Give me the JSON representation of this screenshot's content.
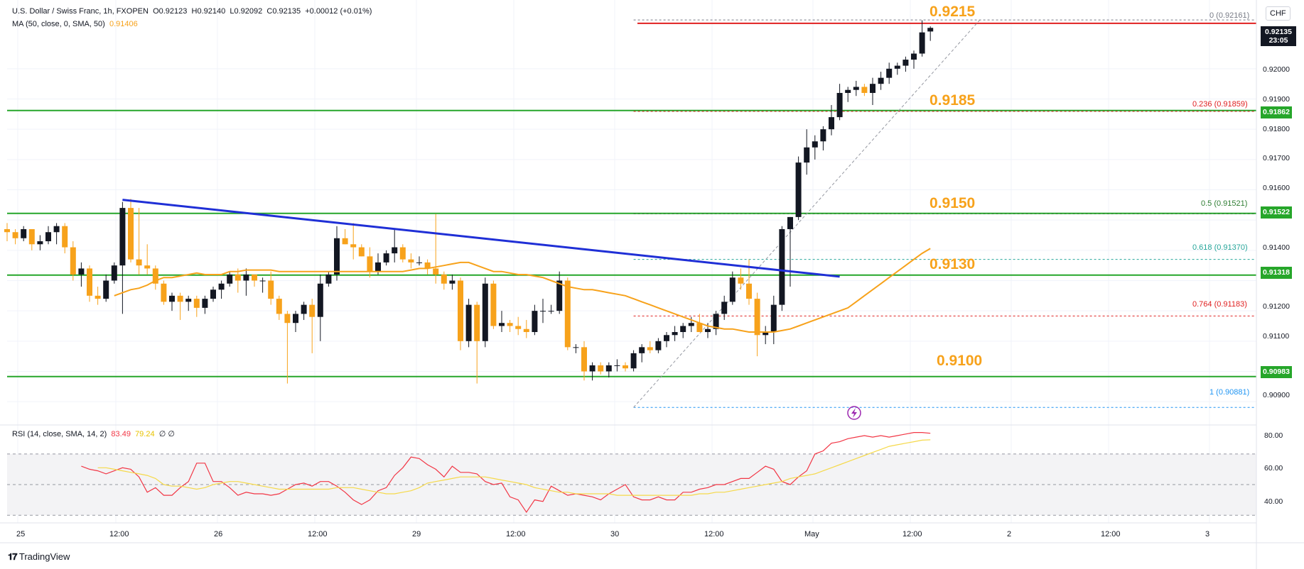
{
  "legend": {
    "symbol": "U.S. Dollar / Swiss Franc, 1h, FXOPEN",
    "o": "O0.92123",
    "h": "H0.92140",
    "l": "L0.92092",
    "c": "C0.92135",
    "change": "+0.00012 (+0.01%)",
    "ma_label": "MA (50, close, 0, SMA, 50)",
    "ma_value": "0.91406",
    "rsi_label": "RSI (14, close, SMA, 14, 2)",
    "rsi_value": "83.49",
    "rsi_avg_value": "79.24",
    "rsi_extra": "∅  ∅"
  },
  "currency": "CHF",
  "last_price": {
    "price": "0.92135",
    "countdown": "23:05"
  },
  "price_badges": [
    "0.91862",
    "0.91522",
    "0.91318",
    "0.90983"
  ],
  "level_labels": [
    "0.9215",
    "0.9185",
    "0.9150",
    "0.9130",
    "0.9100"
  ],
  "fib_labels": [
    "0 (0.92161)",
    "0.236 (0.91859)",
    "0.5 (0.91521)",
    "0.618 (0.91370)",
    "0.764 (0.91183)",
    "1 (0.90881)"
  ],
  "price_ticks": [
    "0.92000",
    "0.91900",
    "0.91800",
    "0.91700",
    "0.91600",
    "0.91400",
    "0.91300",
    "0.91200",
    "0.91100",
    "0.90900"
  ],
  "rsi_ticks": [
    "80.00",
    "60.00",
    "40.00"
  ],
  "time_ticks": [
    "25",
    "12:00",
    "26",
    "12:00",
    "29",
    "12:00",
    "30",
    "12:00",
    "May",
    "12:00",
    "2",
    "12:00",
    "3"
  ],
  "brand": "TradingView",
  "colors": {
    "up": "#131722",
    "down": "#f7a21b",
    "support": "#26a62a",
    "resistance": "#e02020",
    "trendline": "#1f2fd6",
    "ma": "#f7a21b",
    "rsi": "#f23645",
    "rsi_avg": "#f5d94a"
  },
  "chart_data": {
    "type": "candlestick",
    "timeframe": "1h",
    "ylim": [
      0.9083,
      0.9222
    ],
    "rsi_ylim": [
      25,
      88
    ],
    "candles": [
      [
        0.9147,
        0.9149,
        0.9143,
        0.9146
      ],
      [
        0.9146,
        0.9147,
        0.9142,
        0.9144
      ],
      [
        0.9144,
        0.9148,
        0.9143,
        0.9147
      ],
      [
        0.9147,
        0.9147,
        0.914,
        0.9142
      ],
      [
        0.9142,
        0.9145,
        0.914,
        0.9143
      ],
      [
        0.9143,
        0.9148,
        0.9142,
        0.9146
      ],
      [
        0.9146,
        0.9149,
        0.9142,
        0.9148
      ],
      [
        0.9148,
        0.9149,
        0.9139,
        0.9141
      ],
      [
        0.9141,
        0.9143,
        0.913,
        0.9132
      ],
      [
        0.9132,
        0.9136,
        0.9128,
        0.9134
      ],
      [
        0.9134,
        0.9135,
        0.9123,
        0.9125
      ],
      [
        0.9125,
        0.9128,
        0.9122,
        0.9124
      ],
      [
        0.9124,
        0.9132,
        0.9123,
        0.913
      ],
      [
        0.913,
        0.9136,
        0.9129,
        0.9135
      ],
      [
        0.9135,
        0.9156,
        0.9119,
        0.9154
      ],
      [
        0.9154,
        0.9157,
        0.9136,
        0.9137
      ],
      [
        0.9137,
        0.9154,
        0.9132,
        0.9135
      ],
      [
        0.9135,
        0.9142,
        0.9132,
        0.9134
      ],
      [
        0.9134,
        0.9135,
        0.9127,
        0.9129
      ],
      [
        0.9129,
        0.913,
        0.9122,
        0.9123
      ],
      [
        0.9123,
        0.9126,
        0.912,
        0.9125
      ],
      [
        0.9125,
        0.9126,
        0.9117,
        0.9123
      ],
      [
        0.9123,
        0.9125,
        0.912,
        0.9124
      ],
      [
        0.9124,
        0.9125,
        0.9118,
        0.9121
      ],
      [
        0.9121,
        0.9125,
        0.9119,
        0.9124
      ],
      [
        0.9124,
        0.9128,
        0.9123,
        0.9127
      ],
      [
        0.9127,
        0.913,
        0.9124,
        0.9129
      ],
      [
        0.9129,
        0.9133,
        0.9128,
        0.9132
      ],
      [
        0.9132,
        0.9134,
        0.9126,
        0.913
      ],
      [
        0.913,
        0.9134,
        0.9125,
        0.9132
      ],
      [
        0.9132,
        0.9132,
        0.9128,
        0.913
      ],
      [
        0.913,
        0.9131,
        0.9126,
        0.913
      ],
      [
        0.913,
        0.9133,
        0.9122,
        0.9124
      ],
      [
        0.9124,
        0.9125,
        0.9117,
        0.9119
      ],
      [
        0.9119,
        0.912,
        0.9096,
        0.9116
      ],
      [
        0.9116,
        0.912,
        0.9113,
        0.9119
      ],
      [
        0.9119,
        0.9123,
        0.9117,
        0.9122
      ],
      [
        0.9122,
        0.9124,
        0.9106,
        0.9118
      ],
      [
        0.9118,
        0.9132,
        0.911,
        0.9129
      ],
      [
        0.9129,
        0.9133,
        0.9128,
        0.9132
      ],
      [
        0.9132,
        0.9148,
        0.913,
        0.9144
      ],
      [
        0.9144,
        0.9147,
        0.9142,
        0.9142
      ],
      [
        0.9142,
        0.9149,
        0.9137,
        0.9141
      ],
      [
        0.9141,
        0.9142,
        0.9138,
        0.9138
      ],
      [
        0.9138,
        0.9141,
        0.9131,
        0.9133
      ],
      [
        0.9133,
        0.9139,
        0.9132,
        0.9136
      ],
      [
        0.9136,
        0.914,
        0.9135,
        0.9139
      ],
      [
        0.9139,
        0.9147,
        0.9136,
        0.9141
      ],
      [
        0.9141,
        0.9142,
        0.9136,
        0.9137
      ],
      [
        0.9137,
        0.9139,
        0.9134,
        0.9136
      ],
      [
        0.9136,
        0.9138,
        0.9135,
        0.9136
      ],
      [
        0.9136,
        0.9137,
        0.9132,
        0.9134
      ],
      [
        0.9134,
        0.9152,
        0.9129,
        0.9132
      ],
      [
        0.9132,
        0.9133,
        0.9127,
        0.9129
      ],
      [
        0.9129,
        0.9132,
        0.9127,
        0.913
      ],
      [
        0.913,
        0.9131,
        0.9107,
        0.911
      ],
      [
        0.911,
        0.9124,
        0.9108,
        0.9122
      ],
      [
        0.9122,
        0.9123,
        0.9096,
        0.911
      ],
      [
        0.911,
        0.9131,
        0.9108,
        0.9129
      ],
      [
        0.9129,
        0.913,
        0.9114,
        0.9115
      ],
      [
        0.9115,
        0.912,
        0.9113,
        0.9116
      ],
      [
        0.9116,
        0.9117,
        0.9113,
        0.9115
      ],
      [
        0.9115,
        0.9118,
        0.9112,
        0.9114
      ],
      [
        0.9114,
        0.9117,
        0.9111,
        0.9113
      ],
      [
        0.9113,
        0.9122,
        0.9112,
        0.912
      ],
      [
        0.912,
        0.9124,
        0.9116,
        0.912
      ],
      [
        0.912,
        0.9122,
        0.9119,
        0.912
      ],
      [
        0.912,
        0.9133,
        0.9119,
        0.913
      ],
      [
        0.913,
        0.9131,
        0.9107,
        0.9108
      ],
      [
        0.9108,
        0.9109,
        0.9106,
        0.9108
      ],
      [
        0.9108,
        0.911,
        0.9097,
        0.91
      ],
      [
        0.91,
        0.9103,
        0.9097,
        0.9102
      ],
      [
        0.9102,
        0.9103,
        0.9099,
        0.91
      ],
      [
        0.91,
        0.9103,
        0.9098,
        0.9102
      ],
      [
        0.9102,
        0.9104,
        0.91,
        0.9102
      ],
      [
        0.9102,
        0.9103,
        0.91,
        0.9101
      ],
      [
        0.9101,
        0.9107,
        0.91,
        0.9106
      ],
      [
        0.9106,
        0.9109,
        0.9103,
        0.9108
      ],
      [
        0.9108,
        0.911,
        0.9106,
        0.9107
      ],
      [
        0.9107,
        0.9111,
        0.9106,
        0.911
      ],
      [
        0.911,
        0.9113,
        0.9108,
        0.9112
      ],
      [
        0.9112,
        0.9115,
        0.911,
        0.9113
      ],
      [
        0.9113,
        0.9116,
        0.9111,
        0.9115
      ],
      [
        0.9115,
        0.9118,
        0.9113,
        0.9116
      ],
      [
        0.9116,
        0.9119,
        0.9113,
        0.9113
      ],
      [
        0.9113,
        0.9116,
        0.9111,
        0.9114
      ],
      [
        0.9114,
        0.912,
        0.9112,
        0.9119
      ],
      [
        0.9119,
        0.9125,
        0.9117,
        0.9123
      ],
      [
        0.9123,
        0.9133,
        0.9122,
        0.9131
      ],
      [
        0.9131,
        0.9134,
        0.9127,
        0.9129
      ],
      [
        0.9129,
        0.9137,
        0.9122,
        0.9124
      ],
      [
        0.9124,
        0.9126,
        0.9105,
        0.9112
      ],
      [
        0.9112,
        0.9115,
        0.9109,
        0.9113
      ],
      [
        0.9113,
        0.9125,
        0.9109,
        0.9122
      ],
      [
        0.9122,
        0.9148,
        0.912,
        0.9147
      ],
      [
        0.9147,
        0.9151,
        0.9128,
        0.9151
      ],
      [
        0.9151,
        0.9171,
        0.915,
        0.9169
      ],
      [
        0.9169,
        0.918,
        0.9165,
        0.9174
      ],
      [
        0.9174,
        0.9178,
        0.917,
        0.9176
      ],
      [
        0.9176,
        0.9181,
        0.9173,
        0.918
      ],
      [
        0.918,
        0.9188,
        0.9178,
        0.9184
      ],
      [
        0.9184,
        0.9195,
        0.9183,
        0.9192
      ],
      [
        0.9192,
        0.9194,
        0.9189,
        0.9193
      ],
      [
        0.9193,
        0.9196,
        0.9191,
        0.9194
      ],
      [
        0.9194,
        0.9195,
        0.9191,
        0.9192
      ],
      [
        0.9192,
        0.9197,
        0.9188,
        0.9195
      ],
      [
        0.9195,
        0.9199,
        0.9193,
        0.9197
      ],
      [
        0.9197,
        0.9202,
        0.9195,
        0.92
      ],
      [
        0.92,
        0.9202,
        0.9198,
        0.9201
      ],
      [
        0.9201,
        0.9204,
        0.9199,
        0.9203
      ],
      [
        0.9203,
        0.9206,
        0.92,
        0.9205
      ],
      [
        0.9205,
        0.9216,
        0.9204,
        0.9212
      ],
      [
        0.92123,
        0.9214,
        0.92092,
        0.92135
      ]
    ],
    "ma": [
      0.9125,
      0.9126,
      0.9127,
      0.91275,
      0.91285,
      0.913,
      0.9131,
      0.9131,
      0.91315,
      0.9132,
      0.91325,
      0.9132,
      0.9132,
      0.9132,
      0.9133,
      0.9133,
      0.91335,
      0.91335,
      0.91335,
      0.91335,
      0.9133,
      0.9133,
      0.9133,
      0.9133,
      0.9133,
      0.9133,
      0.9133,
      0.9133,
      0.9133,
      0.9133,
      0.9133,
      0.9133,
      0.9133,
      0.9133,
      0.9133,
      0.9133,
      0.91335,
      0.9134,
      0.9134,
      0.91345,
      0.9135,
      0.91355,
      0.9136,
      0.9136,
      0.9135,
      0.9134,
      0.9133,
      0.9133,
      0.91325,
      0.9132,
      0.9132,
      0.91315,
      0.9131,
      0.913,
      0.9129,
      0.9128,
      0.91275,
      0.9127,
      0.9127,
      0.91265,
      0.9126,
      0.91255,
      0.9125,
      0.9124,
      0.9123,
      0.9122,
      0.9121,
      0.912,
      0.9119,
      0.9118,
      0.9117,
      0.9116,
      0.9115,
      0.91145,
      0.9114,
      0.9114,
      0.91135,
      0.9113,
      0.9113,
      0.9113,
      0.9113,
      0.91135,
      0.9114,
      0.9115,
      0.9116,
      0.9117,
      0.9118,
      0.9119,
      0.912,
      0.9121,
      0.9123,
      0.9125,
      0.9127,
      0.9129,
      0.9131,
      0.9133,
      0.9135,
      0.9137,
      0.9139,
      0.91406
    ],
    "rsi": [
      62,
      60,
      59,
      57,
      59,
      61,
      60,
      55,
      45,
      48,
      43,
      43,
      48,
      52,
      64,
      64,
      52,
      52,
      48,
      43,
      45,
      44,
      44,
      43,
      44,
      47,
      50,
      51,
      49,
      52,
      52,
      49,
      45,
      40,
      37,
      40,
      46,
      48,
      56,
      61,
      68,
      67,
      63,
      60,
      55,
      62,
      58,
      58,
      57,
      52,
      50,
      51,
      42,
      40,
      32,
      40,
      39,
      49,
      46,
      43,
      44,
      43,
      42,
      40,
      44,
      47,
      50,
      42,
      40,
      40,
      42,
      40,
      40,
      45,
      45,
      47,
      48,
      50,
      50,
      52,
      54,
      54,
      58,
      62,
      60,
      52,
      50,
      55,
      59,
      70,
      72,
      77,
      78,
      80,
      81,
      82,
      81,
      82,
      81,
      82,
      83,
      84,
      84,
      83.49
    ],
    "rsi_avg": [
      61,
      61,
      60,
      59,
      58,
      57,
      56,
      54,
      50,
      49,
      49,
      48,
      47,
      48,
      50,
      51,
      52,
      52,
      51,
      50,
      49,
      48,
      47,
      47,
      47,
      47,
      47,
      47,
      47,
      48,
      48,
      48,
      47,
      46,
      45,
      44,
      44,
      45,
      46,
      48,
      51,
      52,
      53,
      54,
      55,
      55,
      55,
      55,
      54,
      53,
      52,
      51,
      50,
      48,
      47,
      46,
      45,
      45,
      44,
      44,
      44,
      44,
      44,
      43,
      43,
      43,
      43,
      43,
      43,
      43,
      43,
      43,
      43,
      44,
      44,
      45,
      45,
      46,
      47,
      48,
      49,
      50,
      51,
      52,
      54,
      55,
      56,
      57,
      59,
      61,
      63,
      65,
      67,
      69,
      71,
      73,
      75,
      76,
      77,
      78,
      79,
      79.24
    ],
    "rsi_levels": [
      70,
      50,
      30
    ],
    "horizontal_levels": [
      {
        "value": 0.9215,
        "label": "0.9215",
        "color": "#e02020"
      },
      {
        "value": 0.91862,
        "label": "0.9185",
        "color": "#26a62a"
      },
      {
        "value": 0.91522,
        "label": "0.9150",
        "color": "#26a62a"
      },
      {
        "value": 0.91318,
        "label": "0.9130",
        "color": "#26a62a"
      },
      {
        "value": 0.90983,
        "label": "0.9100",
        "color": "#26a62a"
      }
    ],
    "fibonacci": [
      {
        "ratio": 0,
        "value": 0.92161
      },
      {
        "ratio": 0.236,
        "value": 0.91859
      },
      {
        "ratio": 0.5,
        "value": 0.91521
      },
      {
        "ratio": 0.618,
        "value": 0.9137
      },
      {
        "ratio": 0.764,
        "value": 0.91183
      },
      {
        "ratio": 1,
        "value": 0.90881
      }
    ],
    "trendline": {
      "from": [
        14,
        0.91567
      ],
      "to": [
        101,
        0.91313
      ]
    },
    "fib_anchor": {
      "low": [
        76,
        0.90881
      ],
      "high": [
        118,
        0.92161
      ]
    }
  }
}
